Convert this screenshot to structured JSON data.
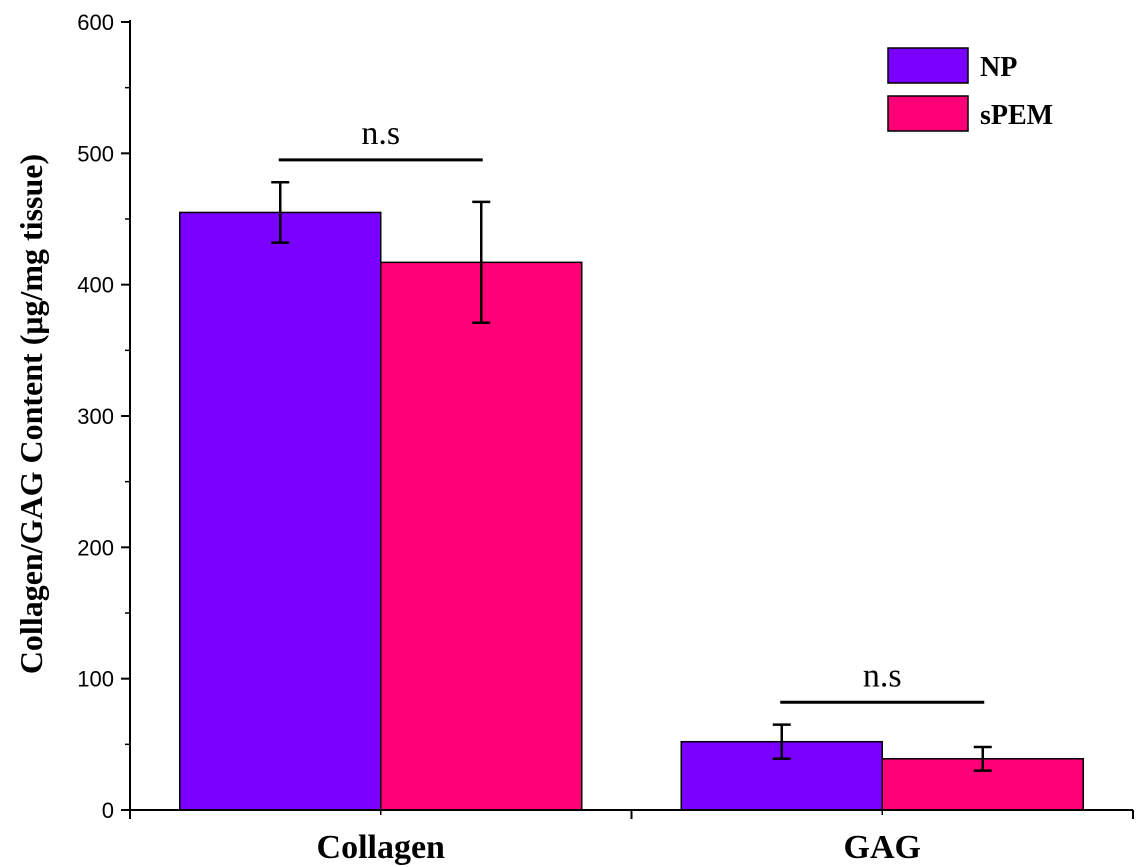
{
  "chart_data": {
    "type": "bar",
    "categories": [
      "Collagen",
      "GAG"
    ],
    "series": [
      {
        "name": "NP",
        "color": "#7a00ff",
        "values": [
          455,
          52
        ],
        "errors": [
          23,
          13
        ]
      },
      {
        "name": "sPEM",
        "color": "#ff0077",
        "values": [
          417,
          39
        ],
        "errors": [
          46,
          9
        ]
      }
    ],
    "ylabel": "Collagen/GAG Content (μg/mg tissue)",
    "xlabel": "",
    "ylim": [
      0,
      600
    ],
    "yticks": [
      0,
      100,
      200,
      300,
      400,
      500,
      600
    ],
    "legend": {
      "position": "top-right"
    },
    "grid": false,
    "annotations": [
      {
        "category": "Collagen",
        "text": "n.s",
        "y": 495
      },
      {
        "category": "GAG",
        "text": "n.s",
        "y": 82
      }
    ]
  }
}
